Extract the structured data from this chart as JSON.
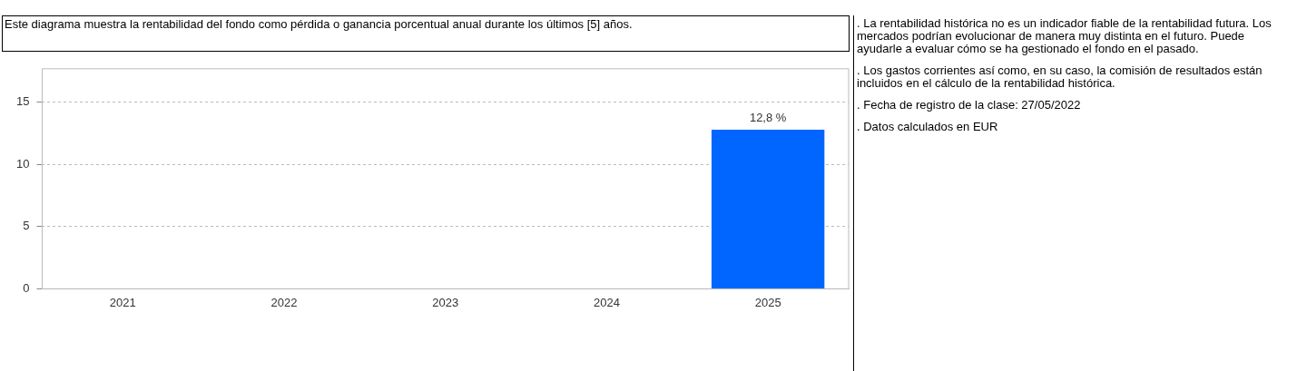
{
  "chart_data": {
    "type": "bar",
    "title": "Este diagrama muestra la rentabilidad del fondo como pérdida o ganancia porcentual anual durante los últimos [5] años.",
    "categories": [
      "2021",
      "2022",
      "2023",
      "2024",
      "2025"
    ],
    "series": [
      {
        "color": "#0066ff",
        "values": [
          null,
          null,
          null,
          null,
          12.8
        ],
        "value_labels": [
          null,
          null,
          null,
          null,
          "12,8 %"
        ]
      }
    ],
    "ylim": [
      0,
      17.7
    ],
    "yticks": [
      0,
      5,
      10,
      15
    ],
    "grid": "y",
    "legend": false,
    "annotations": [
      ". La rentabilidad histórica no es un indicador fiable de la rentabilidad futura. Los mercados podrían evolucionar de manera muy distinta en el futuro. Puede ayudarle a evaluar cómo se ha gestionado el fondo en el pasado.",
      ". Los gastos corrientes así como, en su caso, la comisión de resultados están incluidos en el cálculo de la rentabilidad histórica.",
      ". Fecha de registro de la clase: 27/05/2022",
      ". Datos calculados en EUR"
    ]
  }
}
